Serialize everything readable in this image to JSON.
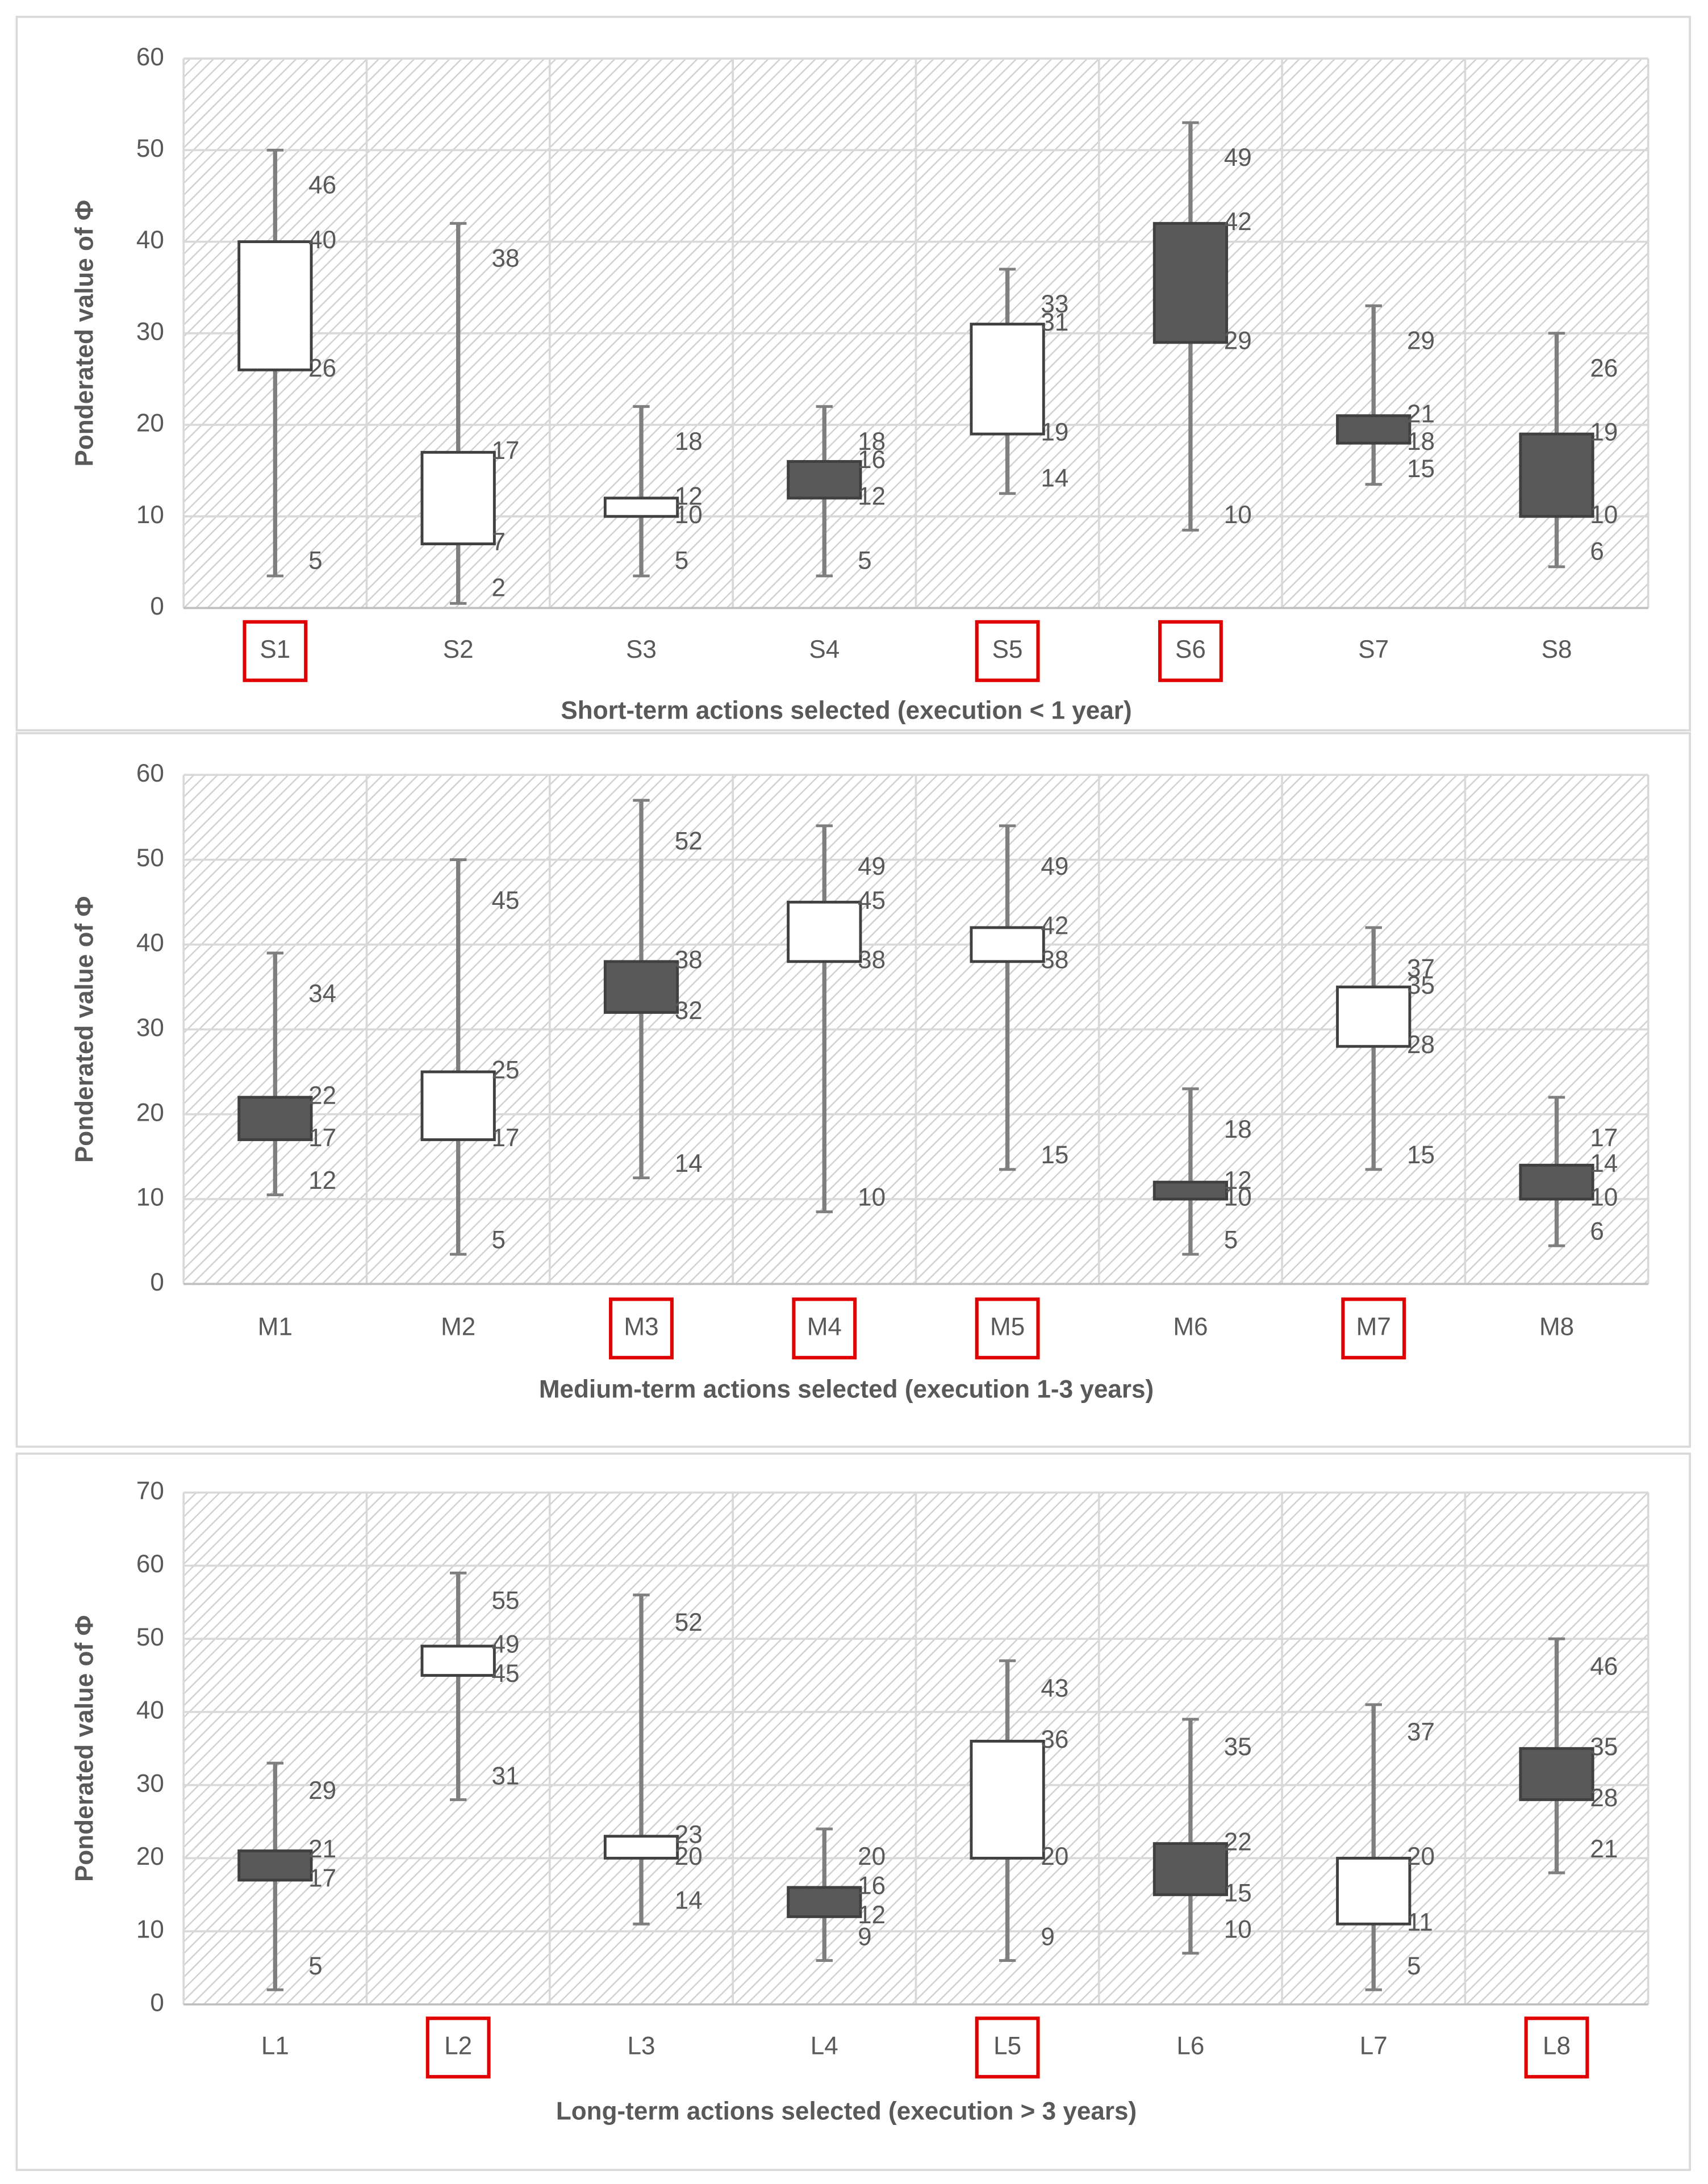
{
  "chart_data": [
    {
      "type": "box",
      "y_label": "Ponderated value of Φ",
      "x_label": "Short-term actions selected (execution < 1 year)",
      "categories": [
        "S1",
        "S2",
        "S3",
        "S4",
        "S5",
        "S6",
        "S7",
        "S8"
      ],
      "box_low": [
        26,
        7,
        10,
        12,
        19,
        29,
        18,
        10
      ],
      "box_high": [
        40,
        17,
        12,
        16,
        31,
        42,
        21,
        19
      ],
      "whisker_low": [
        3.5,
        0.5,
        3.5,
        3.5,
        12.5,
        8.5,
        13.5,
        4.5
      ],
      "whisker_high": [
        50,
        42,
        22,
        22,
        37,
        53,
        33,
        30
      ],
      "labels": [
        [
          46,
          40,
          26,
          5
        ],
        [
          38,
          17,
          7,
          2
        ],
        [
          18,
          12,
          10,
          5
        ],
        [
          18,
          16,
          12,
          5
        ],
        [
          33,
          31,
          19,
          14
        ],
        [
          49,
          42,
          29,
          10
        ],
        [
          29,
          21,
          18,
          15
        ],
        [
          26,
          19,
          10,
          6
        ]
      ],
      "box_colors": [
        "#ffffff",
        "#ffffff",
        "#ffffff",
        "#595959",
        "#ffffff",
        "#595959",
        "#595959",
        "#595959"
      ],
      "highlighted": [
        true,
        false,
        false,
        false,
        true,
        true,
        false,
        false
      ],
      "ylim": [
        0,
        60
      ],
      "yticks": [
        0,
        10,
        20,
        30,
        40,
        50,
        60
      ],
      "grid": true
    },
    {
      "type": "box",
      "y_label": "Ponderated value of Φ",
      "x_label": "Medium-term actions selected (execution 1-3 years)",
      "categories": [
        "M1",
        "M2",
        "M3",
        "M4",
        "M5",
        "M6",
        "M7",
        "M8"
      ],
      "box_low": [
        17,
        17,
        32,
        38,
        38,
        10,
        28,
        10
      ],
      "box_high": [
        22,
        25,
        38,
        45,
        42,
        12,
        35,
        14
      ],
      "whisker_low": [
        10.5,
        3.5,
        12.5,
        8.5,
        13.5,
        3.5,
        13.5,
        4.5
      ],
      "whisker_high": [
        39,
        50,
        57,
        54,
        54,
        23,
        42,
        22
      ],
      "labels": [
        [
          34,
          22,
          17,
          12
        ],
        [
          45,
          25,
          17,
          5
        ],
        [
          52,
          38,
          32,
          14
        ],
        [
          49,
          45,
          38,
          10
        ],
        [
          49,
          42,
          38,
          15
        ],
        [
          18,
          12,
          10,
          5
        ],
        [
          37,
          35,
          28,
          15
        ],
        [
          17,
          14,
          10,
          6
        ]
      ],
      "box_colors": [
        "#595959",
        "#ffffff",
        "#595959",
        "#ffffff",
        "#ffffff",
        "#595959",
        "#ffffff",
        "#595959"
      ],
      "highlighted": [
        false,
        false,
        true,
        true,
        true,
        false,
        true,
        false
      ],
      "ylim": [
        0,
        60
      ],
      "yticks": [
        0,
        10,
        20,
        30,
        40,
        50,
        60
      ],
      "grid": true
    },
    {
      "type": "box",
      "y_label": "Ponderated value of Φ",
      "x_label": "Long-term actions selected (execution > 3 years)",
      "categories": [
        "L1",
        "L2",
        "L3",
        "L4",
        "L5",
        "L6",
        "L7",
        "L8"
      ],
      "box_low": [
        17,
        45,
        20,
        12,
        20,
        15,
        11,
        28
      ],
      "box_high": [
        21,
        49,
        23,
        16,
        36,
        22,
        20,
        35
      ],
      "whisker_low": [
        2,
        28,
        11,
        6,
        6,
        7,
        2,
        18
      ],
      "whisker_high": [
        33,
        59,
        56,
        24,
        47,
        39,
        41,
        50
      ],
      "labels": [
        [
          29,
          21,
          17,
          5
        ],
        [
          55,
          49,
          45,
          31
        ],
        [
          52,
          23,
          20,
          14
        ],
        [
          20,
          16,
          12,
          9
        ],
        [
          43,
          36,
          20,
          9
        ],
        [
          35,
          22,
          15,
          10
        ],
        [
          37,
          20,
          11,
          5
        ],
        [
          46,
          35,
          28,
          21
        ]
      ],
      "box_colors": [
        "#595959",
        "#ffffff",
        "#ffffff",
        "#595959",
        "#ffffff",
        "#595959",
        "#ffffff",
        "#595959"
      ],
      "highlighted": [
        false,
        true,
        false,
        false,
        true,
        false,
        false,
        true
      ],
      "ylim": [
        0,
        70
      ],
      "yticks": [
        0,
        10,
        20,
        30,
        40,
        50,
        60,
        70
      ],
      "grid": true
    }
  ]
}
